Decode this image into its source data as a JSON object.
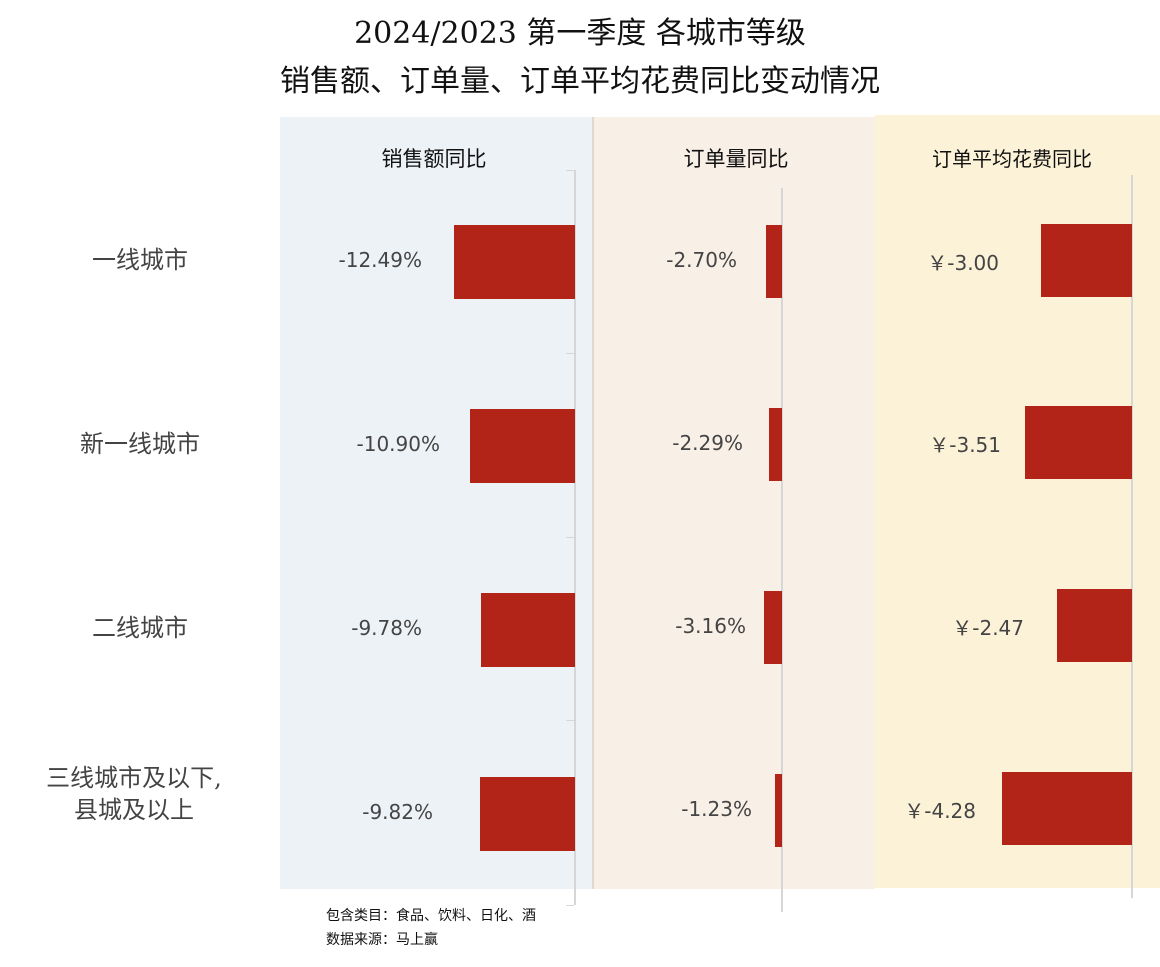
{
  "title_line1": "2024/2023 第一季度 各城市等级",
  "title_line2": "销售额、订单量、订单平均花费同比变动情况",
  "categories": [
    "一线城市",
    "新一线城市",
    "二线城市",
    "三线城市及以下,\n县城及以上"
  ],
  "notes": {
    "line1": "包含类目：食品、饮料、日化、酒",
    "line2": "数据来源：马上赢"
  },
  "colors": {
    "bar": "#b22418",
    "panel_sales_bg": "#edf2f7",
    "panel_orders_bg": "#f8efe7",
    "panel_avg_bg": "#fcf2d7"
  },
  "chart_data": [
    {
      "type": "bar",
      "orientation": "horizontal",
      "title": "销售额同比",
      "categories": [
        "一线城市",
        "新一线城市",
        "二线城市",
        "三线城市及以下,\n县城及以上"
      ],
      "values": [
        -12.49,
        -10.9,
        -9.78,
        -9.82
      ],
      "labels": [
        "-12.49%",
        "-10.90%",
        "-9.78%",
        "-9.82%"
      ],
      "unit": "%"
    },
    {
      "type": "bar",
      "orientation": "horizontal",
      "title": "订单量同比",
      "categories": [
        "一线城市",
        "新一线城市",
        "二线城市",
        "三线城市及以下,\n县城及以上"
      ],
      "values": [
        -2.7,
        -2.29,
        -3.16,
        -1.23
      ],
      "labels": [
        "-2.70%",
        "-2.29%",
        "-3.16%",
        "-1.23%"
      ],
      "unit": "%"
    },
    {
      "type": "bar",
      "orientation": "horizontal",
      "title": "订单平均花费同比",
      "categories": [
        "一线城市",
        "新一线城市",
        "二线城市",
        "三线城市及以下,\n县城及以上"
      ],
      "values": [
        -3.0,
        -3.51,
        -2.47,
        -4.28
      ],
      "labels": [
        "￥-3.00",
        "￥-3.51",
        "￥-2.47",
        "￥-4.28"
      ],
      "unit": "￥"
    }
  ]
}
